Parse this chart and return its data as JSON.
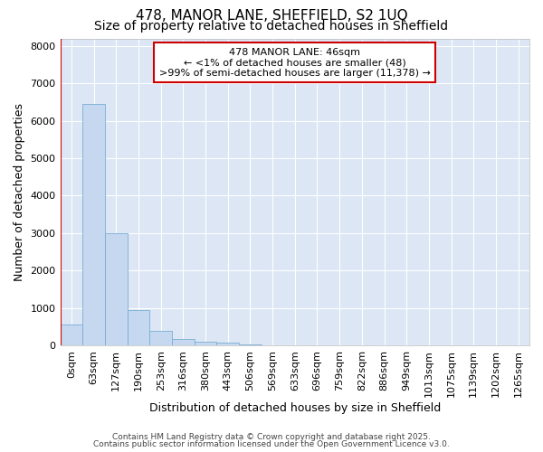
{
  "title_line1": "478, MANOR LANE, SHEFFIELD, S2 1UQ",
  "title_line2": "Size of property relative to detached houses in Sheffield",
  "xlabel": "Distribution of detached houses by size in Sheffield",
  "ylabel": "Number of detached properties",
  "bar_values": [
    550,
    6450,
    3000,
    950,
    380,
    180,
    100,
    80,
    30,
    10,
    5,
    2,
    1,
    0,
    0,
    0,
    0,
    0,
    0,
    0,
    0
  ],
  "bar_labels": [
    "0sqm",
    "63sqm",
    "127sqm",
    "190sqm",
    "253sqm",
    "316sqm",
    "380sqm",
    "443sqm",
    "506sqm",
    "569sqm",
    "633sqm",
    "696sqm",
    "759sqm",
    "822sqm",
    "886sqm",
    "949sqm",
    "1013sqm",
    "1075sqm",
    "1139sqm",
    "1202sqm",
    "1265sqm"
  ],
  "bar_color": "#c5d8f0",
  "bar_edge_color": "#7aadd4",
  "bar_edge_width": 0.6,
  "ylim": [
    0,
    8200
  ],
  "yticks": [
    0,
    1000,
    2000,
    3000,
    4000,
    5000,
    6000,
    7000,
    8000
  ],
  "annotation_text": "478 MANOR LANE: 46sqm\n← <1% of detached houses are smaller (48)\n>99% of semi-detached houses are larger (11,378) →",
  "annotation_box_color": "#ffffff",
  "annotation_box_edge": "#cc0000",
  "fig_bg_color": "#ffffff",
  "plot_bg_color": "#dce6f5",
  "red_line_color": "#cc0000",
  "grid_color": "#ffffff",
  "footer_line1": "Contains HM Land Registry data © Crown copyright and database right 2025.",
  "footer_line2": "Contains public sector information licensed under the Open Government Licence v3.0.",
  "title_fontsize": 11,
  "subtitle_fontsize": 10,
  "tick_fontsize": 8,
  "axis_label_fontsize": 9,
  "annotation_fontsize": 8,
  "footer_fontsize": 6.5
}
